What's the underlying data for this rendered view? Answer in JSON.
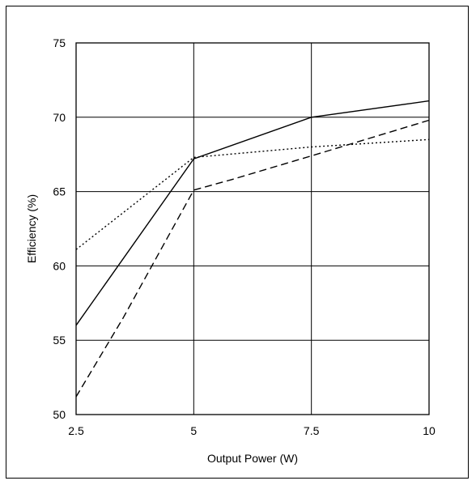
{
  "chart_data": {
    "type": "line",
    "xlabel": "Output Power (W)",
    "ylabel": "Efficiency (%)",
    "xlim": [
      2.5,
      10
    ],
    "ylim": [
      50,
      75
    ],
    "x_ticks": [
      2.5,
      5,
      7.5,
      10
    ],
    "x_tick_labels": [
      "2.5",
      "5",
      "7.5",
      "10"
    ],
    "y_ticks": [
      50,
      55,
      60,
      65,
      70,
      75
    ],
    "y_tick_labels": [
      "50",
      "55",
      "60",
      "65",
      "70",
      "75"
    ],
    "grid": true,
    "legend": "none",
    "series": [
      {
        "style": "solid",
        "color": "#000000",
        "x": [
          2.5,
          5,
          7.5,
          10
        ],
        "y": [
          56.0,
          67.2,
          70.0,
          71.1
        ]
      },
      {
        "style": "dotted",
        "color": "#000000",
        "x": [
          2.5,
          5,
          7.5,
          10
        ],
        "y": [
          61.1,
          67.3,
          68.0,
          68.5
        ]
      },
      {
        "style": "dashed",
        "color": "#000000",
        "x": [
          2.5,
          3.5,
          5,
          5.8,
          7.5,
          10
        ],
        "y": [
          51.2,
          56.5,
          65.1,
          65.8,
          67.4,
          69.8
        ]
      }
    ]
  }
}
